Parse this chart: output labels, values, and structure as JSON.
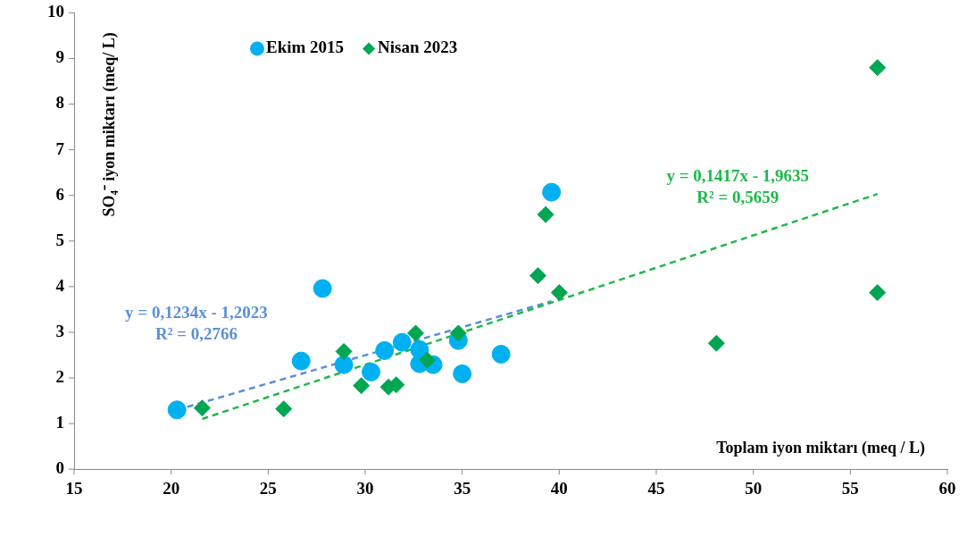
{
  "chart_data": {
    "type": "scatter",
    "xlabel": "Toplam iyon miktarı (meq / L)",
    "ylabel": "SO₄⁻ iyon miktarı (meq/ L)",
    "xlim": [
      15,
      60
    ],
    "xticks": [
      15,
      20,
      25,
      30,
      35,
      40,
      45,
      50,
      55,
      60
    ],
    "ylim": [
      0,
      10
    ],
    "yticks": [
      0,
      1,
      2,
      3,
      4,
      5,
      6,
      7,
      8,
      9,
      10
    ],
    "grid": false,
    "legend": "top left",
    "series": [
      {
        "name": "Ekim 2015",
        "marker": "circle",
        "color": "#00b0f0",
        "x": [
          20.3,
          26.7,
          27.8,
          28.9,
          30.3,
          31.0,
          31.9,
          32.8,
          32.8,
          33.5,
          34.8,
          35.0,
          37.0,
          39.6
        ],
        "values": [
          1.3,
          2.37,
          3.96,
          2.29,
          2.13,
          2.6,
          2.78,
          2.62,
          2.31,
          2.29,
          2.82,
          2.09,
          2.52,
          6.07
        ]
      },
      {
        "name": "Nisan 2023",
        "marker": "diamond",
        "color": "#00a651",
        "x": [
          21.6,
          25.8,
          28.9,
          29.8,
          31.2,
          31.6,
          32.6,
          33.2,
          34.8,
          38.9,
          39.3,
          40.0,
          48.1,
          56.4,
          56.4
        ],
        "values": [
          1.34,
          1.32,
          2.58,
          1.83,
          1.8,
          1.85,
          2.98,
          2.39,
          2.98,
          4.24,
          5.58,
          3.87,
          2.76,
          3.87,
          8.8
        ]
      },
      {
        "type": "line",
        "line_style": "dashed",
        "color": "#5b8fd9",
        "x": [
          20.3,
          39.6
        ],
        "values": [
          1.3,
          3.68
        ]
      },
      {
        "type": "line",
        "line_style": "dashed",
        "color": "#1fb84a",
        "x": [
          21.6,
          56.4
        ],
        "values": [
          1.1,
          6.03
        ]
      }
    ],
    "annotations": [
      "y = 0,1234x - 1,2023\nR² = 0,2766",
      "y = 0,1417x - 1,9635\nR² = 0,5659"
    ]
  }
}
